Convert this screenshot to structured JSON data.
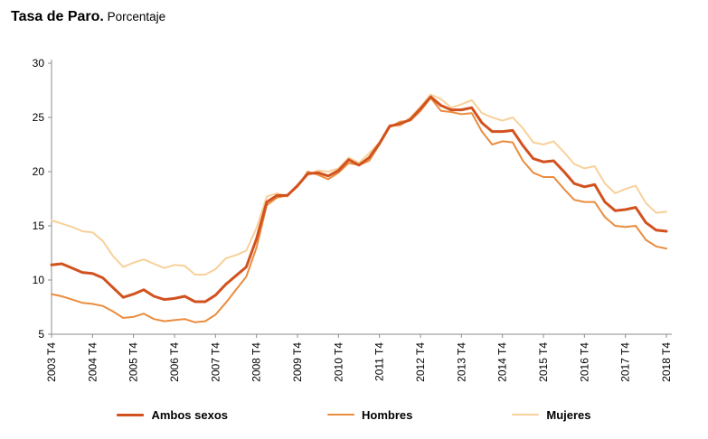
{
  "header": {
    "title_bold": "Tasa de Paro.",
    "title_rest": " Porcentaje"
  },
  "chart_data": {
    "type": "line",
    "title": "Tasa de Paro. Porcentaje",
    "xlabel": "",
    "ylabel": "",
    "ylim": [
      5,
      30
    ],
    "y_ticks": [
      5,
      10,
      15,
      20,
      25,
      30
    ],
    "grid": false,
    "legend_position": "bottom",
    "axis_color": "#8c8c8c",
    "x_points_per_tick": 4,
    "x_tick_labels": [
      "2003 T4",
      "2004 T4",
      "2005 T4",
      "2006 T4",
      "2007 T4",
      "2008 T4",
      "2009 T4",
      "2010 T4",
      "2011 T4",
      "2012 T4",
      "2013 T4",
      "2014 T4",
      "2015 T4",
      "2016 T4",
      "2017 T4",
      "2018 T4"
    ],
    "series": [
      {
        "name": "Ambos sexos",
        "color": "#d2521f",
        "width": 3,
        "values": [
          11.4,
          11.5,
          11.1,
          10.7,
          10.6,
          10.2,
          9.3,
          8.4,
          8.7,
          9.1,
          8.5,
          8.2,
          8.3,
          8.5,
          8.0,
          8.0,
          8.6,
          9.6,
          10.4,
          11.2,
          13.8,
          17.2,
          17.8,
          17.8,
          18.7,
          19.8,
          19.9,
          19.6,
          20.1,
          21.1,
          20.6,
          21.3,
          22.6,
          24.2,
          24.4,
          24.8,
          25.8,
          26.9,
          26.1,
          25.7,
          25.7,
          25.9,
          24.5,
          23.7,
          23.7,
          23.8,
          22.4,
          21.2,
          20.9,
          21.0,
          20.0,
          18.9,
          18.6,
          18.8,
          17.2,
          16.4,
          16.5,
          16.7,
          15.3,
          14.6,
          14.5
        ]
      },
      {
        "name": "Hombres",
        "color": "#ea8c3e",
        "width": 2,
        "values": [
          8.7,
          8.5,
          8.2,
          7.9,
          7.8,
          7.6,
          7.1,
          6.5,
          6.6,
          6.9,
          6.4,
          6.2,
          6.3,
          6.4,
          6.1,
          6.2,
          6.8,
          7.9,
          9.1,
          10.3,
          13.0,
          16.9,
          17.6,
          17.8,
          18.6,
          20.0,
          19.7,
          19.3,
          19.9,
          20.8,
          20.6,
          21.0,
          22.5,
          24.1,
          24.6,
          24.7,
          25.6,
          26.8,
          25.6,
          25.5,
          25.3,
          25.4,
          23.7,
          22.5,
          22.8,
          22.7,
          21.0,
          19.9,
          19.5,
          19.5,
          18.4,
          17.4,
          17.2,
          17.2,
          15.8,
          15.0,
          14.9,
          15.0,
          13.7,
          13.1,
          12.9
        ]
      },
      {
        "name": "Mujeres",
        "color": "#f8d09a",
        "width": 2,
        "values": [
          15.5,
          15.2,
          14.9,
          14.5,
          14.4,
          13.6,
          12.2,
          11.2,
          11.6,
          11.9,
          11.5,
          11.1,
          11.4,
          11.3,
          10.5,
          10.5,
          11.0,
          12.0,
          12.3,
          12.7,
          14.8,
          17.7,
          18.0,
          17.7,
          18.8,
          19.7,
          20.1,
          20.0,
          20.3,
          21.3,
          20.8,
          21.7,
          22.7,
          24.3,
          24.2,
          25.0,
          26.0,
          27.1,
          26.7,
          25.9,
          26.2,
          26.6,
          25.4,
          25.0,
          24.7,
          25.0,
          24.0,
          22.7,
          22.5,
          22.8,
          21.8,
          20.7,
          20.3,
          20.5,
          18.9,
          18.0,
          18.4,
          18.7,
          17.1,
          16.2,
          16.3
        ]
      }
    ]
  }
}
